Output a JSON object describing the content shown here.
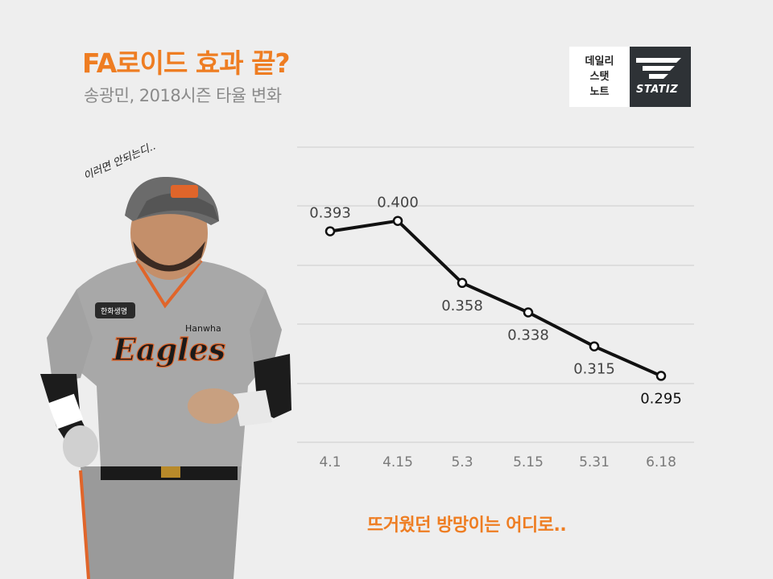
{
  "header": {
    "title": "FA로이드 효과 끝?",
    "subtitle": "송광민, 2018시즌 타율 변화"
  },
  "logo": {
    "line1": "데일리",
    "line2": "스탯",
    "line3": "노트",
    "brand": "STATIZ"
  },
  "player_image": {
    "quote": "이러면 안되는디..",
    "jersey_team": "Eagles",
    "jersey_sponsor": "Hanwha",
    "patch": "한화생명"
  },
  "tagline": "뜨거웠던 방망이는 어디로..",
  "colors": {
    "accent": "#ee7d22",
    "line": "#111111",
    "grid": "#cccccc",
    "logo_dark": "#2e3236"
  },
  "chart_data": {
    "type": "line",
    "categories": [
      "4.1",
      "4.15",
      "5.3",
      "5.15",
      "5.31",
      "6.18"
    ],
    "values": [
      0.393,
      0.4,
      0.358,
      0.338,
      0.315,
      0.295
    ],
    "labels": [
      "0.393",
      "0.400",
      "0.358",
      "0.338",
      "0.315",
      "0.295"
    ],
    "ylim": [
      0.25,
      0.45
    ],
    "grid": true,
    "xlabel": "",
    "ylabel": ""
  }
}
